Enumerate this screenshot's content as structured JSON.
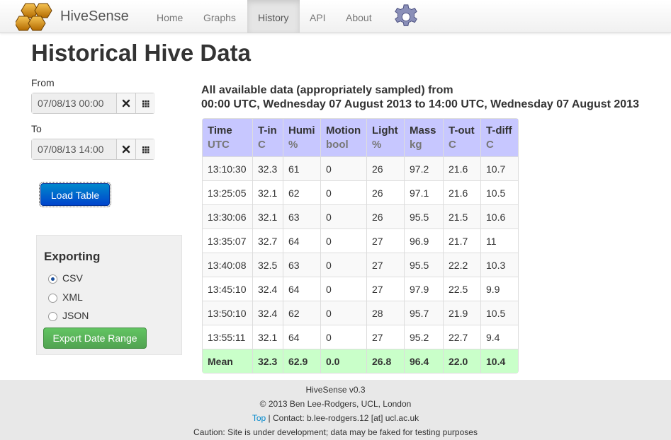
{
  "navbar": {
    "brand": "HiveSense",
    "items": [
      "Home",
      "Graphs",
      "History",
      "API",
      "About"
    ],
    "active": "History"
  },
  "page": {
    "title": "Historical Hive Data"
  },
  "filters": {
    "from_label": "From",
    "from_value": "07/08/13 00:00",
    "to_label": "To",
    "to_value": "07/08/13 14:00",
    "clear_glyph": "✖",
    "calendar_glyph": "▦",
    "load_button": "Load Table"
  },
  "exporting": {
    "title": "Exporting",
    "options": [
      "CSV",
      "XML",
      "JSON"
    ],
    "selected": "CSV",
    "button": "Export Date Range"
  },
  "description": {
    "line1": "All available data (appropriately sampled) from",
    "line2": "00:00 UTC, Wednesday 07 August 2013 to 14:00 UTC, Wednesday 07 August 2013"
  },
  "table": {
    "headers": [
      {
        "name": "Time",
        "unit": "UTC"
      },
      {
        "name": "T-in",
        "unit": "C"
      },
      {
        "name": "Humi",
        "unit": "%"
      },
      {
        "name": "Motion",
        "unit": "bool"
      },
      {
        "name": "Light",
        "unit": "%"
      },
      {
        "name": "Mass",
        "unit": "kg"
      },
      {
        "name": "T-out",
        "unit": "C"
      },
      {
        "name": "T-diff",
        "unit": "C"
      }
    ],
    "rows": [
      [
        "13:10:30",
        "32.3",
        "61",
        "0",
        "26",
        "97.2",
        "21.6",
        "10.7"
      ],
      [
        "13:25:05",
        "32.1",
        "62",
        "0",
        "26",
        "97.1",
        "21.6",
        "10.5"
      ],
      [
        "13:30:06",
        "32.1",
        "63",
        "0",
        "26",
        "95.5",
        "21.5",
        "10.6"
      ],
      [
        "13:35:07",
        "32.7",
        "64",
        "0",
        "27",
        "96.9",
        "21.7",
        "11"
      ],
      [
        "13:40:08",
        "32.5",
        "63",
        "0",
        "27",
        "95.5",
        "22.2",
        "10.3"
      ],
      [
        "13:45:10",
        "32.4",
        "64",
        "0",
        "27",
        "97.9",
        "22.5",
        "9.9"
      ],
      [
        "13:50:10",
        "32.4",
        "62",
        "0",
        "28",
        "95.7",
        "21.9",
        "10.5"
      ],
      [
        "13:55:11",
        "32.1",
        "64",
        "0",
        "27",
        "95.2",
        "22.7",
        "9.4"
      ]
    ],
    "mean": [
      "Mean",
      "32.3",
      "62.9",
      "0.0",
      "26.8",
      "96.4",
      "22.0",
      "10.4"
    ]
  },
  "footer": {
    "version": "HiveSense v0.3",
    "copyright": "© 2013 Ben Lee-Rodgers, UCL, London",
    "top_link": "Top",
    "contact": " | Contact: b.lee-rodgers.12 [at] ucl.ac.uk",
    "caution": "Caution: Site is under development; data may be faked for testing purposes"
  },
  "colors": {
    "header_bg": "#c7c7ff",
    "mean_bg": "#c9ffc9",
    "load_button": "#0055cc",
    "export_button": "#5bb75b",
    "link": "#0088cc"
  },
  "icons": {
    "logo": "honeycomb-logo-icon",
    "settings": "gear-icon",
    "clear": "clear-x-icon",
    "calendar": "calendar-grid-icon",
    "radio": "radio-icon"
  }
}
